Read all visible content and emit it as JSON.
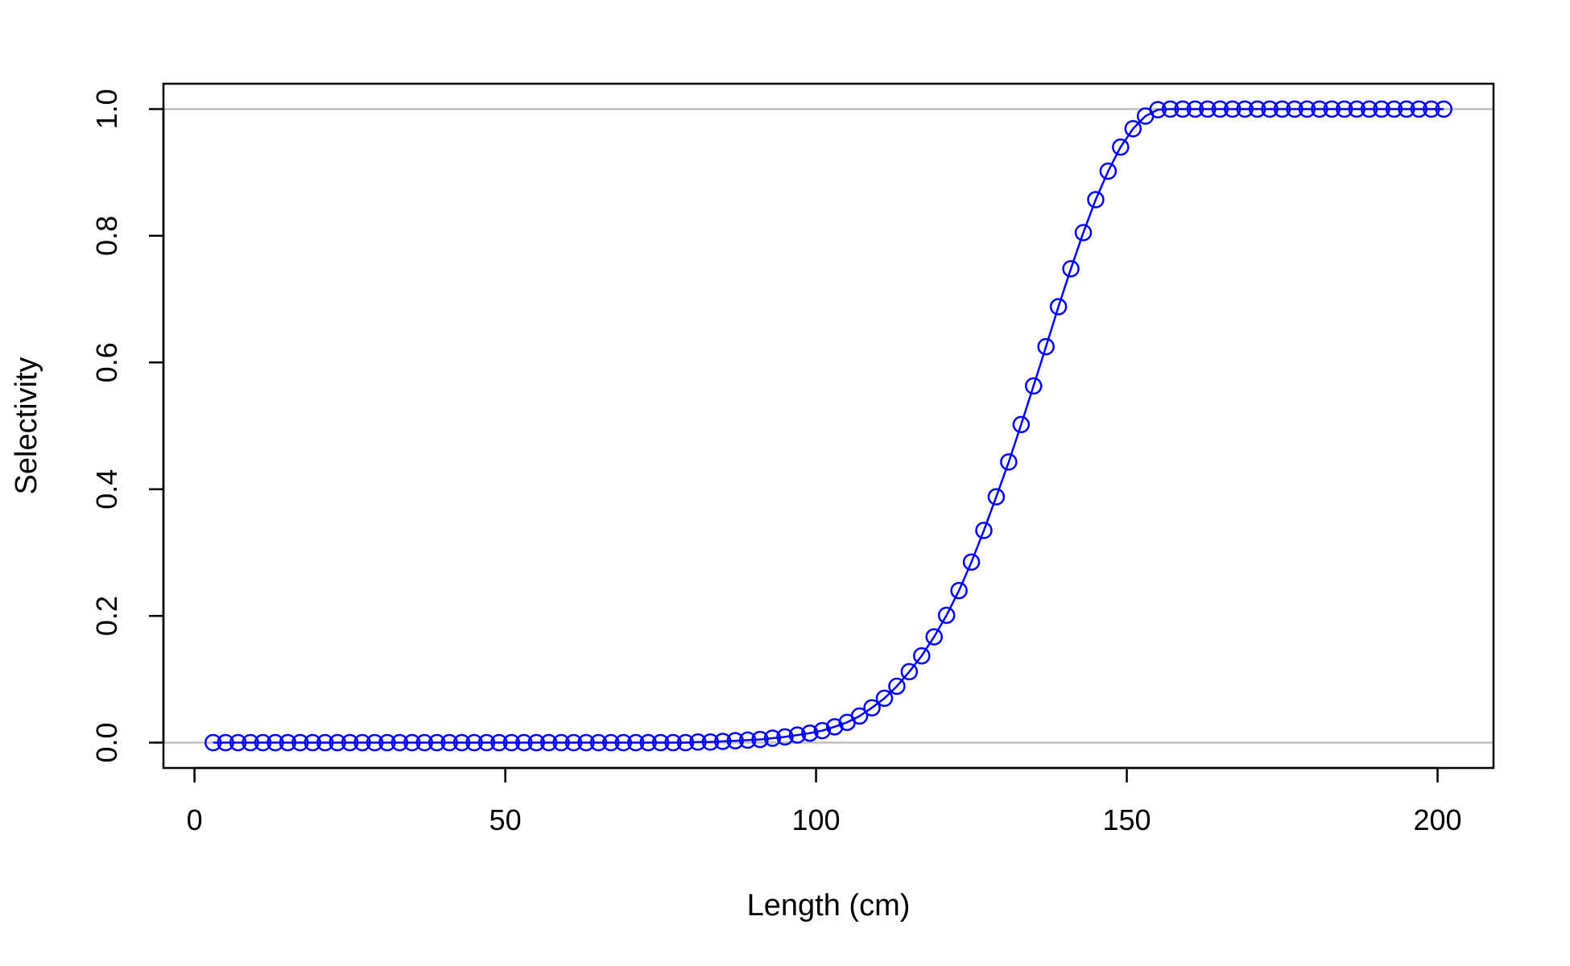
{
  "chart_data": {
    "type": "line",
    "xlabel": "Length (cm)",
    "ylabel": "Selectivity",
    "xlim": [
      -5,
      209
    ],
    "ylim": [
      -0.04,
      1.04
    ],
    "xticks": [
      0,
      50,
      100,
      150,
      200
    ],
    "yticks": [
      0.0,
      0.2,
      0.4,
      0.6,
      0.8,
      1.0
    ],
    "x_tick_labels": [
      "0",
      "50",
      "100",
      "150",
      "200"
    ],
    "y_tick_labels": [
      "0.0",
      "0.2",
      "0.4",
      "0.6",
      "0.8",
      "1.0"
    ],
    "reference_lines": [
      0,
      1
    ],
    "grid": false,
    "colors": {
      "series": "#0000ff",
      "reference": "#bebebe",
      "axis": "#000000"
    },
    "series": [
      {
        "marker": "open-circle",
        "x": [
          3,
          5,
          7,
          9,
          11,
          13,
          15,
          17,
          19,
          21,
          23,
          25,
          27,
          29,
          31,
          33,
          35,
          37,
          39,
          41,
          43,
          45,
          47,
          49,
          51,
          53,
          55,
          57,
          59,
          61,
          63,
          65,
          67,
          69,
          71,
          73,
          75,
          77,
          79,
          81,
          83,
          85,
          87,
          89,
          91,
          93,
          95,
          97,
          99,
          101,
          103,
          105,
          107,
          109,
          111,
          113,
          115,
          117,
          119,
          121,
          123,
          125,
          127,
          129,
          131,
          133,
          135,
          137,
          139,
          141,
          143,
          145,
          147,
          149,
          151,
          153,
          155,
          157,
          159,
          161,
          163,
          165,
          167,
          169,
          171,
          173,
          175,
          177,
          179,
          181,
          183,
          185,
          187,
          189,
          191,
          193,
          195,
          197,
          199,
          201
        ],
        "y": [
          0,
          0,
          0,
          0,
          0,
          0,
          0,
          0,
          0,
          0,
          0,
          0,
          0,
          0,
          0,
          0,
          0,
          0,
          0,
          0,
          0,
          0,
          0,
          0,
          0,
          0,
          0,
          0,
          0,
          0,
          0,
          0,
          0,
          0,
          0,
          0,
          0,
          0,
          0,
          0.001,
          0.001,
          0.002,
          0.003,
          0.004,
          0.005,
          0.007,
          0.009,
          0.012,
          0.015,
          0.019,
          0.025,
          0.032,
          0.042,
          0.055,
          0.07,
          0.089,
          0.112,
          0.137,
          0.167,
          0.201,
          0.24,
          0.285,
          0.335,
          0.388,
          0.443,
          0.502,
          0.563,
          0.625,
          0.688,
          0.748,
          0.805,
          0.857,
          0.902,
          0.94,
          0.969,
          0.989,
          0.999,
          1,
          1,
          1,
          1,
          1,
          1,
          1,
          1,
          1,
          1,
          1,
          1,
          1,
          1,
          1,
          1,
          1,
          1,
          1,
          1,
          1,
          1,
          1
        ]
      }
    ]
  }
}
